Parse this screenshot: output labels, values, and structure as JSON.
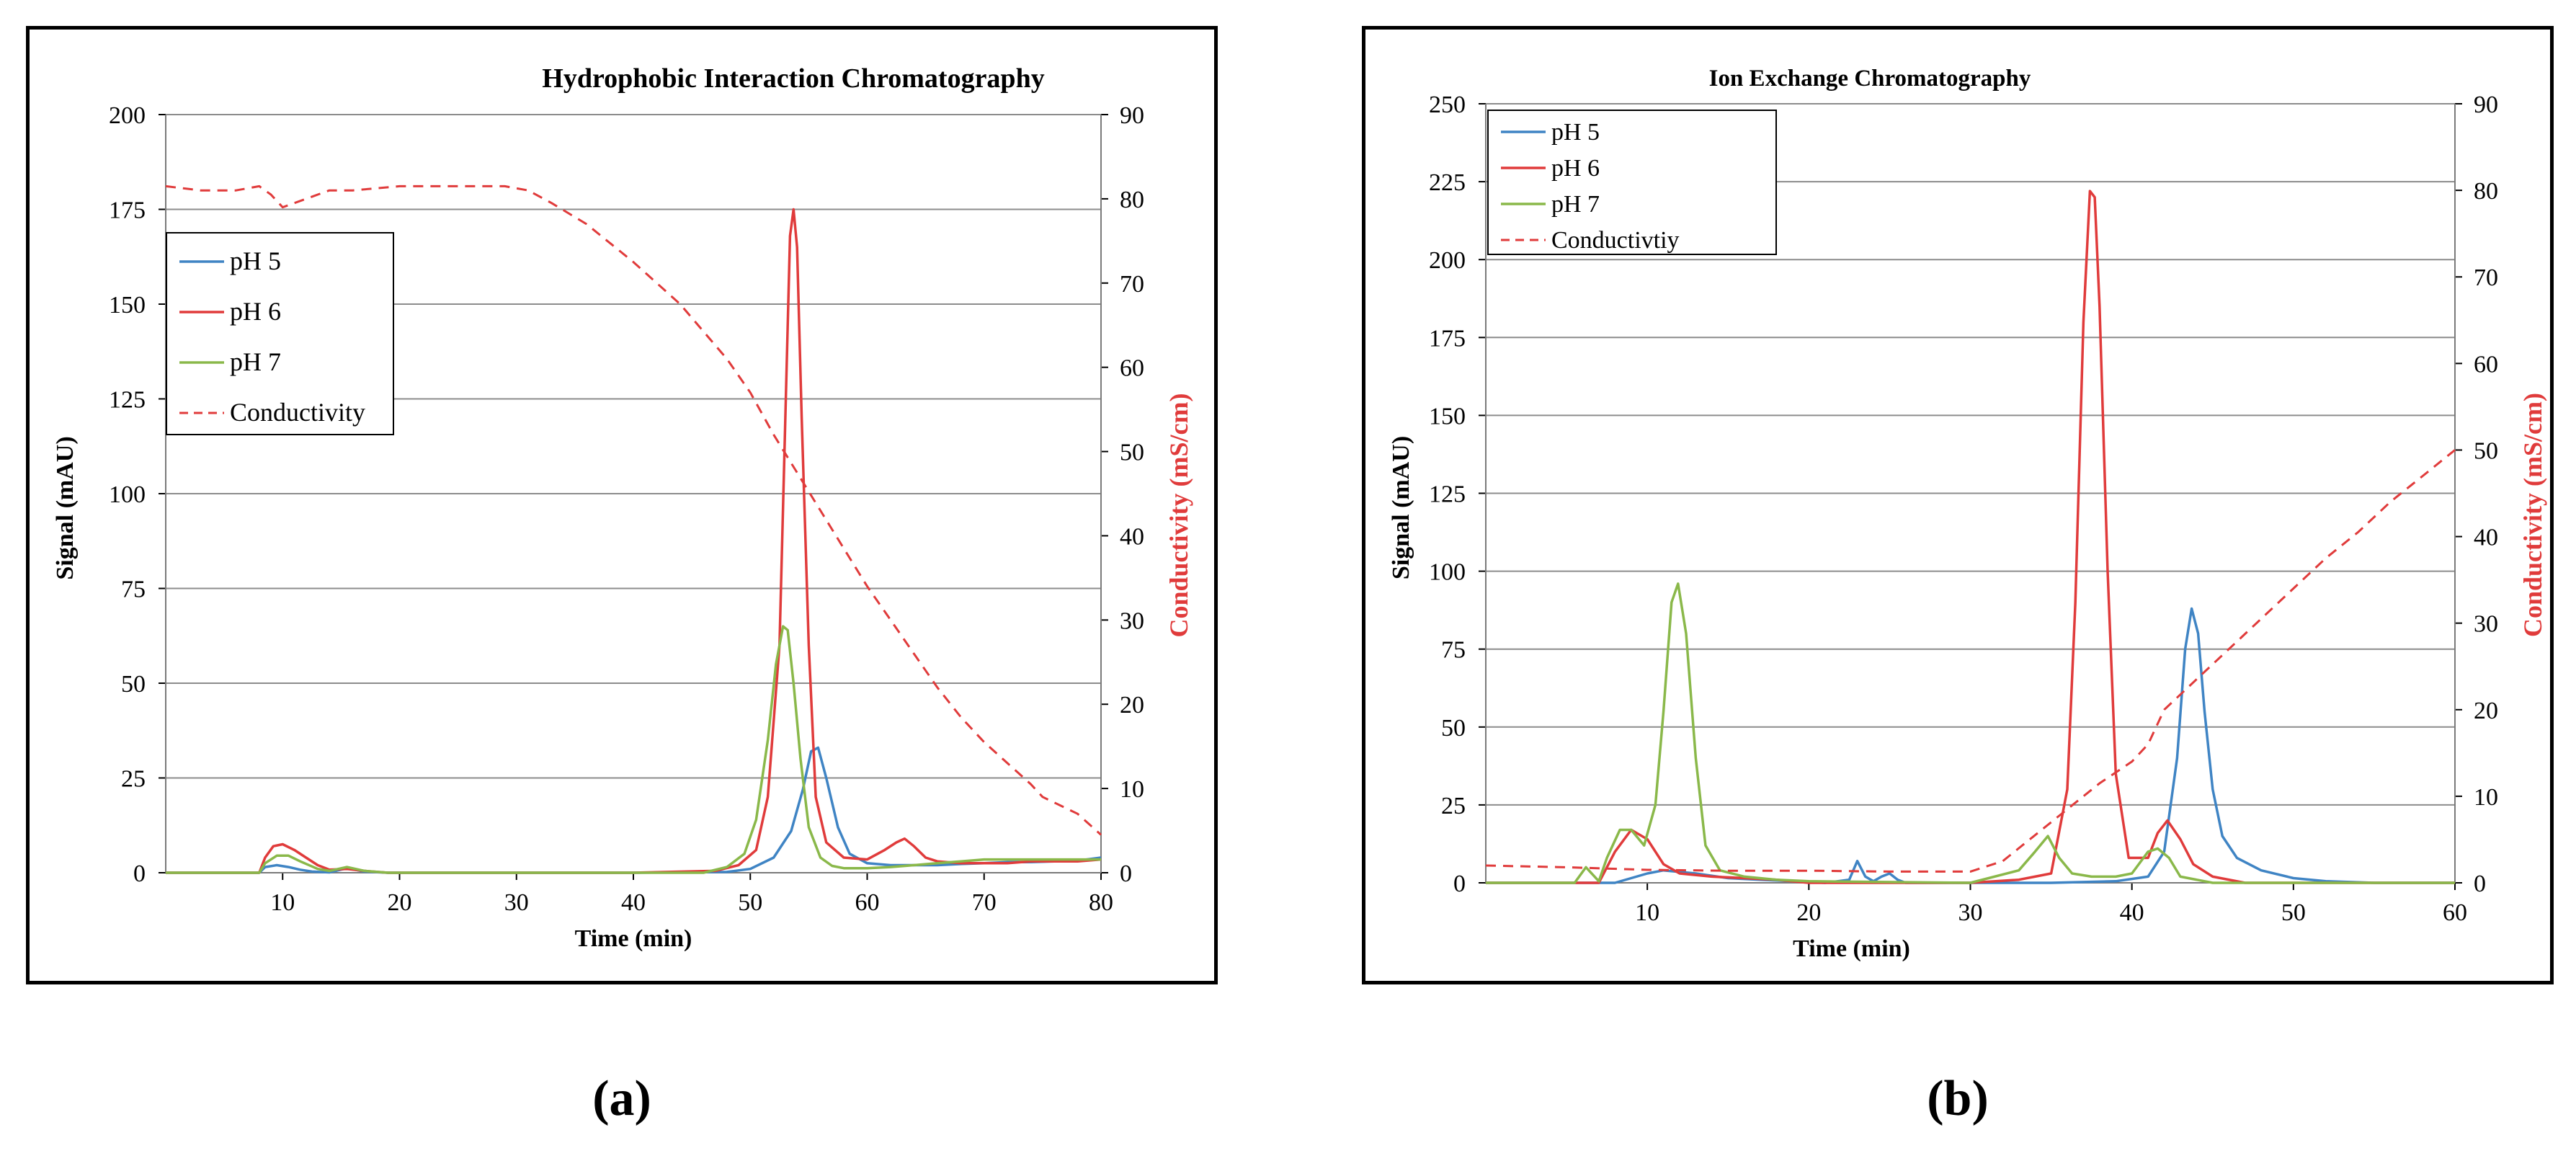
{
  "colors": {
    "ph5": "#3f84c4",
    "ph6": "#e03b3b",
    "ph7": "#8ab84a",
    "conductivity": "#e03b3b",
    "grid": "#8c8c8c",
    "axisRight": "#e03b3b"
  },
  "sublabels": {
    "a": "(a)",
    "b": "(b)"
  },
  "chart_data": [
    {
      "type": "line",
      "title": "Hydrophobic Interaction Chromatography",
      "xlabel": "Time (min)",
      "ylabel": "Signal (mAU)",
      "y2label": "Conductivity (mS/cm)",
      "xlim": [
        0,
        80
      ],
      "ylim": [
        0,
        200
      ],
      "y2lim": [
        0,
        90
      ],
      "xticks": [
        10,
        20,
        30,
        40,
        50,
        60,
        70,
        80
      ],
      "yticks": [
        0,
        25,
        50,
        75,
        100,
        125,
        150,
        175,
        200
      ],
      "y2ticks": [
        0,
        10,
        20,
        30,
        40,
        50,
        60,
        70,
        80,
        90
      ],
      "legend_position": "left-middle",
      "grid": true,
      "series": [
        {
          "name": "pH 5",
          "color_key": "ph5",
          "axis": "left",
          "dashed": false,
          "x": [
            0,
            8,
            8.5,
            9.5,
            10.5,
            11.5,
            12.5,
            14,
            15.5,
            17,
            19,
            30,
            40,
            48,
            50,
            52,
            53.5,
            54.5,
            55.2,
            55.8,
            56.5,
            57.5,
            58.5,
            60,
            62,
            64,
            66,
            68,
            70,
            72,
            74,
            76,
            78,
            80
          ],
          "y": [
            0,
            0,
            1.5,
            2,
            1.5,
            0.8,
            0.3,
            0.1,
            1.2,
            0.3,
            0,
            0,
            0,
            0.2,
            1,
            4,
            11,
            22,
            32,
            33,
            25,
            12,
            5,
            2.5,
            2,
            2,
            2,
            2.3,
            2.5,
            2.8,
            2.8,
            3,
            3.2,
            4
          ]
        },
        {
          "name": "pH 6",
          "color_key": "ph6",
          "axis": "left",
          "dashed": false,
          "x": [
            0,
            8,
            8.5,
            9.2,
            10,
            11,
            12,
            13,
            14,
            15.5,
            17,
            19,
            30,
            40,
            47,
            49,
            50.5,
            51.5,
            52.5,
            53,
            53.4,
            53.7,
            54,
            54.4,
            55,
            55.6,
            56.5,
            58,
            60,
            61.5,
            62.5,
            63.2,
            64,
            65,
            66,
            68,
            70,
            72,
            74,
            76,
            78,
            80
          ],
          "y": [
            0,
            0,
            4,
            7,
            7.5,
            6,
            4,
            2,
            0.8,
            1,
            0.5,
            0,
            0,
            0,
            0.5,
            2,
            6,
            20,
            60,
            120,
            168,
            175,
            165,
            120,
            60,
            20,
            8,
            4,
            3.5,
            6,
            8,
            9,
            7,
            4,
            3,
            2.5,
            2.5,
            2.5,
            3,
            3,
            3,
            3.5
          ]
        },
        {
          "name": "pH 7",
          "color_key": "ph7",
          "axis": "left",
          "dashed": false,
          "x": [
            0,
            8,
            8.5,
            9.5,
            10.5,
            11.5,
            13,
            14,
            15.5,
            17,
            19,
            30,
            40,
            46,
            48,
            49.5,
            50.5,
            51.5,
            52.2,
            52.8,
            53.2,
            53.7,
            54.3,
            55,
            56,
            57,
            58,
            60,
            62,
            64,
            66,
            68,
            70,
            72,
            74,
            76,
            78,
            80
          ],
          "y": [
            0,
            0,
            2.5,
            4.5,
            4.5,
            3,
            1,
            0.5,
            1.5,
            0.5,
            0,
            0,
            0,
            0,
            1.5,
            5,
            14,
            35,
            55,
            65,
            64,
            50,
            30,
            12,
            4,
            1.8,
            1.2,
            1.2,
            1.5,
            2,
            2.5,
            3,
            3.5,
            3.5,
            3.5,
            3.5,
            3.5,
            3.5
          ]
        },
        {
          "name": "Conductivity",
          "color_key": "conductivity",
          "axis": "right",
          "dashed": true,
          "x": [
            0,
            3,
            6,
            8,
            9,
            10,
            12,
            14,
            16,
            20,
            25,
            29,
            31,
            33,
            36,
            40,
            44,
            48,
            50,
            52,
            54,
            56,
            58,
            60,
            62,
            64,
            66,
            68,
            70,
            72,
            74,
            75,
            78,
            80
          ],
          "y": [
            81.5,
            81,
            81,
            81.5,
            80.5,
            79,
            80,
            81,
            81,
            81.5,
            81.5,
            81.5,
            81,
            79.5,
            77,
            72.5,
            67.5,
            61,
            57,
            52,
            47.5,
            43,
            38.5,
            34,
            30,
            26,
            22,
            18.5,
            15.5,
            13,
            10.5,
            9,
            7,
            4.5
          ]
        }
      ],
      "legend": [
        "pH 5",
        "pH 6",
        "pH 7",
        "Conductivity"
      ]
    },
    {
      "type": "line",
      "title": "Ion Exchange Chromatography",
      "xlabel": "Time (min)",
      "ylabel": "Signal (mAU)",
      "y2label": "Conductivity (mS/cm)",
      "xlim": [
        0,
        60
      ],
      "ylim": [
        0,
        250
      ],
      "y2lim": [
        0,
        90
      ],
      "xticks": [
        10,
        20,
        30,
        40,
        50,
        60
      ],
      "yticks": [
        0,
        25,
        50,
        75,
        100,
        125,
        150,
        175,
        200,
        225,
        250
      ],
      "y2ticks": [
        0,
        10,
        20,
        30,
        40,
        50,
        60,
        70,
        80,
        90
      ],
      "legend_position": "top-left",
      "grid": true,
      "series": [
        {
          "name": "pH 5",
          "color_key": "ph5",
          "axis": "left",
          "dashed": false,
          "x": [
            0,
            8,
            9,
            10,
            11,
            12,
            13,
            15,
            17,
            19,
            21,
            22.5,
            23,
            23.5,
            24,
            24.5,
            25,
            25.5,
            26,
            30,
            35,
            39,
            41,
            42,
            42.8,
            43.3,
            43.7,
            44.1,
            44.5,
            45,
            45.6,
            46.5,
            48,
            50,
            52,
            55,
            60
          ],
          "y": [
            0,
            0,
            1.5,
            3,
            4,
            3.5,
            3,
            1.5,
            1,
            0.5,
            0,
            1,
            7,
            2,
            0.5,
            2,
            3,
            1,
            0,
            0,
            0,
            0.5,
            2,
            10,
            40,
            75,
            88,
            80,
            55,
            30,
            15,
            8,
            4,
            1.5,
            0.5,
            0,
            0
          ]
        },
        {
          "name": "pH 6",
          "color_key": "ph6",
          "axis": "left",
          "dashed": false,
          "x": [
            0,
            7,
            8,
            9,
            10,
            11,
            12,
            14,
            16,
            18,
            20,
            30,
            33,
            34,
            35,
            36,
            36.5,
            37,
            37.4,
            37.7,
            38,
            38.5,
            39,
            39.8,
            41,
            41.6,
            42.2,
            43,
            43.8,
            45,
            47,
            50,
            60
          ],
          "y": [
            0,
            0,
            10,
            17,
            14,
            6,
            3,
            2,
            1.5,
            1,
            0,
            0,
            1,
            2,
            3,
            30,
            90,
            180,
            222,
            220,
            185,
            100,
            35,
            8,
            8,
            16,
            20,
            14,
            6,
            2,
            0,
            0,
            0
          ]
        },
        {
          "name": "pH 7",
          "color_key": "ph7",
          "axis": "left",
          "dashed": false,
          "x": [
            0,
            5.5,
            6.2,
            7,
            7.5,
            8.3,
            9,
            9.8,
            10.5,
            11,
            11.5,
            11.9,
            12.4,
            13,
            13.6,
            14.5,
            16,
            18,
            20,
            30,
            33,
            34,
            34.8,
            35.5,
            36.3,
            37.5,
            39,
            40,
            41,
            41.6,
            42.3,
            43,
            45,
            60
          ],
          "y": [
            0,
            0,
            5,
            0.5,
            8,
            17,
            17,
            12,
            25,
            55,
            90,
            96,
            80,
            40,
            12,
            4,
            2,
            1,
            0.5,
            0,
            4,
            10,
            15,
            8,
            3,
            2,
            2,
            3,
            10,
            11,
            8,
            2,
            0,
            0
          ]
        },
        {
          "name": "Conductivity",
          "color_key": "conductivity",
          "axis": "right",
          "dashed": true,
          "x": [
            0,
            5,
            10,
            15,
            20,
            25,
            30,
            32,
            34,
            36,
            38,
            40,
            41,
            42,
            44,
            46,
            48,
            50,
            52,
            54,
            56,
            58,
            60
          ],
          "y": [
            2,
            1.8,
            1.5,
            1.4,
            1.4,
            1.3,
            1.3,
            2.5,
            5.5,
            8.5,
            11.5,
            14,
            16,
            20,
            23.5,
            27,
            30.5,
            34,
            37.5,
            40.5,
            44,
            47,
            50
          ]
        }
      ],
      "legend": [
        "pH 5",
        "pH 6",
        "pH 7",
        "Conductivtiy"
      ]
    }
  ]
}
